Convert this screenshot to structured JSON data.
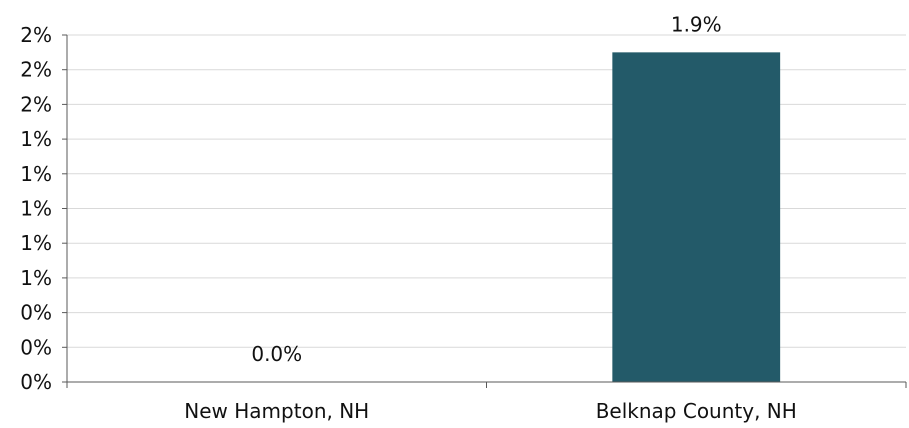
{
  "chart_data": {
    "type": "bar",
    "categories": [
      "New Hampton, NH",
      "Belknap County, NH"
    ],
    "values": [
      0.0,
      1.9
    ],
    "data_labels": [
      "0.0%",
      "1.9%"
    ],
    "ylim": [
      0,
      2.0
    ],
    "y_ticks": [
      {
        "value": 0.0,
        "label": "0%"
      },
      {
        "value": 0.2,
        "label": "0%"
      },
      {
        "value": 0.4,
        "label": "0%"
      },
      {
        "value": 0.6,
        "label": "1%"
      },
      {
        "value": 0.8,
        "label": "1%"
      },
      {
        "value": 1.0,
        "label": "1%"
      },
      {
        "value": 1.2,
        "label": "1%"
      },
      {
        "value": 1.4,
        "label": "1%"
      },
      {
        "value": 1.6,
        "label": "2%"
      },
      {
        "value": 1.8,
        "label": "2%"
      },
      {
        "value": 2.0,
        "label": "2%"
      }
    ],
    "grid": true,
    "legend": "none",
    "title": "",
    "xlabel": "",
    "ylabel": "",
    "colors": {
      "bar": "#235a69",
      "grid": "#d9d9d9",
      "axis": "#595959"
    }
  }
}
